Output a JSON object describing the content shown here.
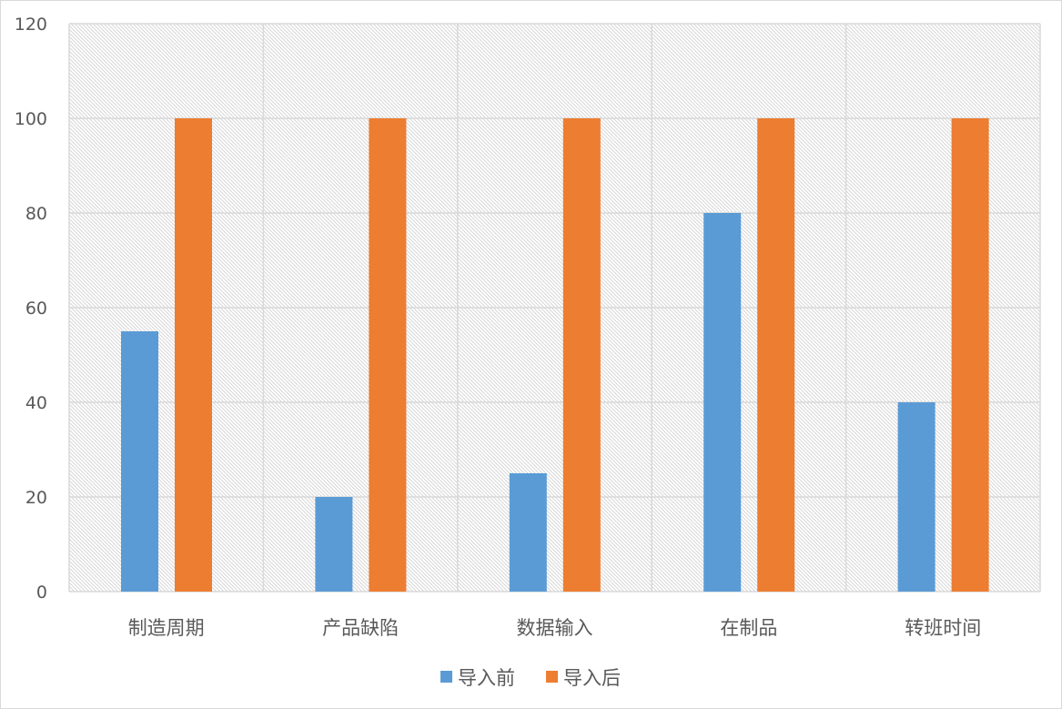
{
  "chart_data": {
    "type": "bar",
    "title": "",
    "xlabel": "",
    "ylabel": "",
    "categories": [
      "制造周期",
      "产品缺陷",
      "数据输入",
      "在制品",
      "转班时间"
    ],
    "series": [
      {
        "name": "导入前",
        "values": [
          55,
          20,
          25,
          80,
          40
        ],
        "color": "#5b9bd5"
      },
      {
        "name": "导入后",
        "values": [
          100,
          100,
          100,
          100,
          100
        ],
        "color": "#ed7d31"
      }
    ],
    "ylim": [
      0,
      120
    ],
    "yticks": [
      0,
      20,
      40,
      60,
      80,
      100,
      120
    ],
    "grid": true,
    "legend": "bottom",
    "plot_background": "hatched"
  }
}
